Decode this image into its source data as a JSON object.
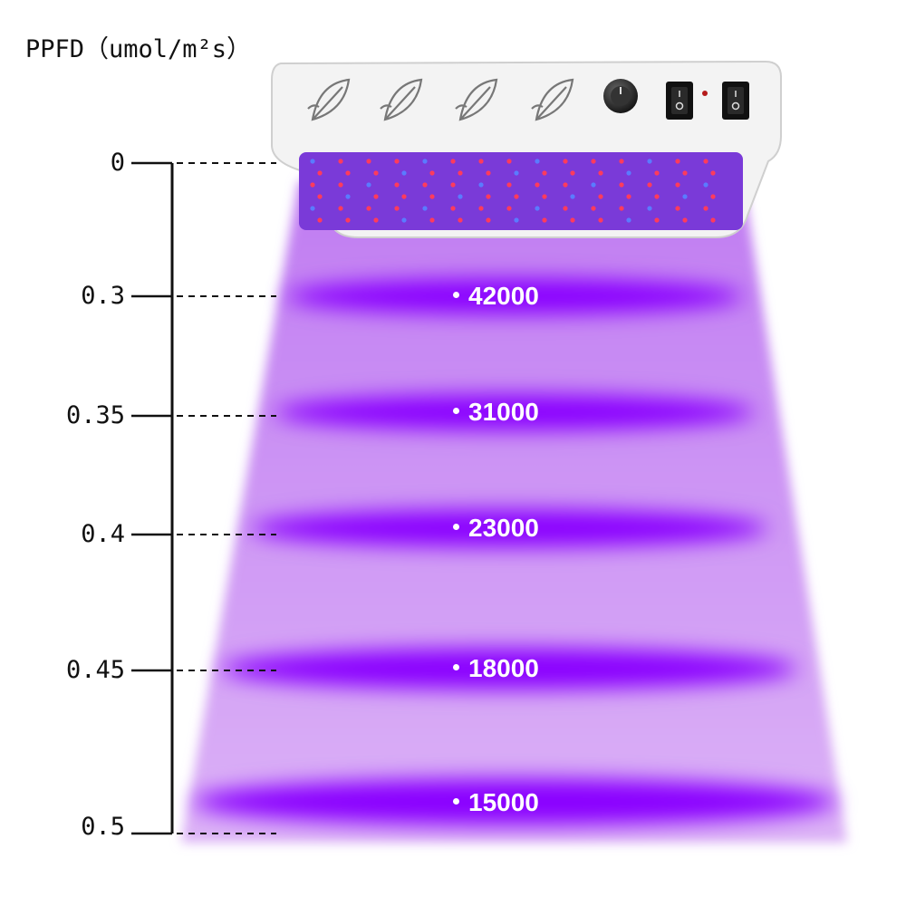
{
  "title": "PPFD（umol/m²s）",
  "heights": [
    "0",
    "0.3",
    "0.35",
    "0.4",
    "0.45",
    "0.5"
  ],
  "ppfd_values": [
    "42000",
    "31000",
    "23000",
    "18000",
    "15000"
  ],
  "colors": {
    "light_beam": "#d9a8f5",
    "intensity_band": "#8a00ff",
    "panel_body": "#f4f4f4",
    "led_red": "#ff3b5c",
    "led_blue": "#5a7bff"
  },
  "icons": [
    "leaf-icon",
    "leaf-icon",
    "leaf-icon",
    "leaf-icon",
    "dimmer-knob-icon",
    "power-switch-icon",
    "power-switch-icon"
  ]
}
